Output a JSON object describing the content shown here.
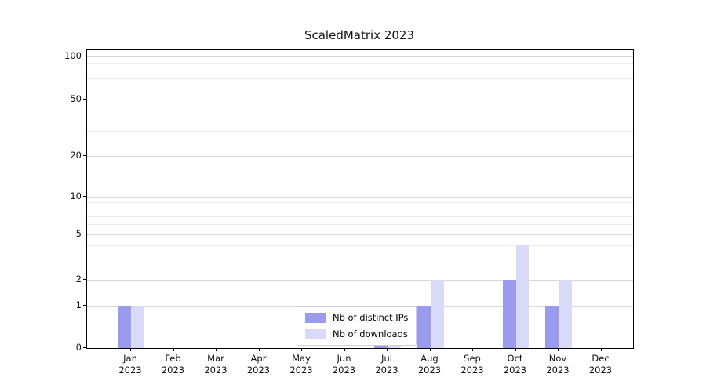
{
  "chart_data": {
    "type": "bar",
    "title": "ScaledMatrix 2023",
    "xlabel": "",
    "ylabel": "",
    "y_scale": "symlog",
    "ylim": [
      0,
      100
    ],
    "grid": true,
    "yticks": [
      0,
      1,
      2,
      5,
      10,
      20,
      50,
      100
    ],
    "minor_yticks": [
      3,
      4,
      6,
      7,
      8,
      9,
      30,
      40,
      60,
      70,
      80,
      90
    ],
    "categories": [
      {
        "month": "Jan",
        "year": "2023"
      },
      {
        "month": "Feb",
        "year": "2023"
      },
      {
        "month": "Mar",
        "year": "2023"
      },
      {
        "month": "Apr",
        "year": "2023"
      },
      {
        "month": "May",
        "year": "2023"
      },
      {
        "month": "Jun",
        "year": "2023"
      },
      {
        "month": "Jul",
        "year": "2023"
      },
      {
        "month": "Aug",
        "year": "2023"
      },
      {
        "month": "Sep",
        "year": "2023"
      },
      {
        "month": "Oct",
        "year": "2023"
      },
      {
        "month": "Nov",
        "year": "2023"
      },
      {
        "month": "Dec",
        "year": "2023"
      }
    ],
    "series": [
      {
        "name": "Nb of distinct IPs",
        "color": "#9b9bee",
        "values": [
          1,
          0,
          0,
          0,
          0,
          0,
          1,
          1,
          0,
          2,
          1,
          0
        ]
      },
      {
        "name": "Nb of downloads",
        "color": "#d9d9f8",
        "values": [
          1,
          0,
          0,
          0,
          0,
          0,
          1,
          2,
          0,
          4,
          2,
          0
        ]
      }
    ],
    "legend": {
      "position": "inside-bottom-center"
    }
  }
}
